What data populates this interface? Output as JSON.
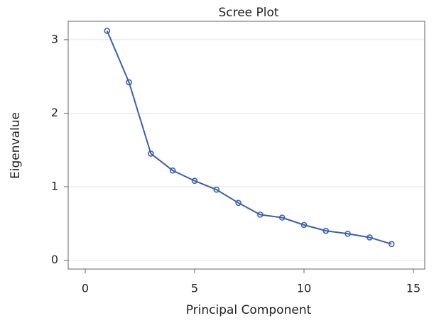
{
  "chart_data": {
    "type": "line",
    "title": "Scree Plot",
    "x_label": "Principal Component",
    "y_label": "Eigenvalue",
    "x": [
      1,
      2,
      3,
      4,
      5,
      6,
      7,
      8,
      9,
      10,
      11,
      12,
      13,
      14
    ],
    "series": [
      {
        "color": "#3a5fb0",
        "values": [
          3.12,
          2.42,
          1.45,
          1.22,
          1.08,
          0.96,
          0.78,
          0.62,
          0.58,
          0.48,
          0.4,
          0.36,
          0.31,
          0.22
        ]
      }
    ],
    "xlim": [
      -0.78,
      15.52
    ],
    "ylim": [
      -0.12,
      3.25
    ],
    "xticks": [
      0,
      5,
      10,
      15
    ],
    "yticks": [
      0,
      1,
      2,
      3
    ],
    "grid": true
  }
}
